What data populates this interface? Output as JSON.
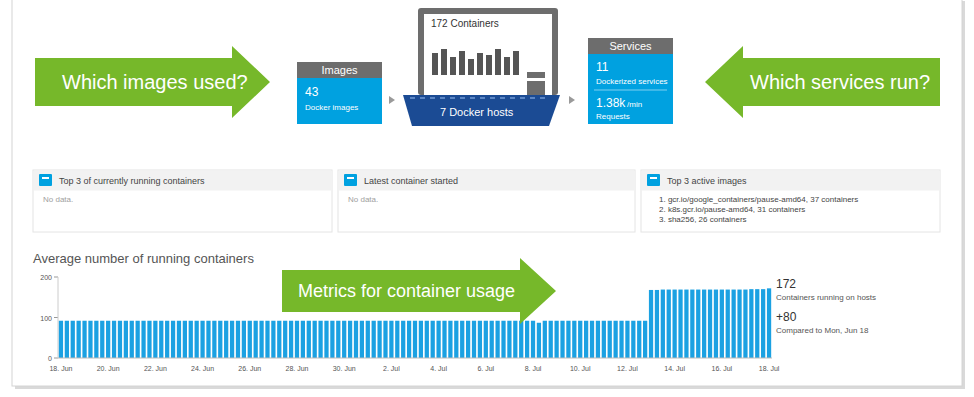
{
  "callouts": [
    "Which images used?",
    "Which services run?",
    "Metrics for container usage"
  ],
  "overview": {
    "images": {
      "title": "Images",
      "count": "43",
      "label": "Docker images"
    },
    "hosts": {
      "containers": "172 Containers",
      "hosts": "7 Docker hosts"
    },
    "services": {
      "title": "Services",
      "count": "11",
      "label": "Dockerized services",
      "requests": "1.38k",
      "unit": "/min",
      "requests_label": "Requests"
    }
  },
  "panels": [
    {
      "title": "Top 3 of currently running containers",
      "body": [
        "No data."
      ]
    },
    {
      "title": "Latest container started",
      "body": [
        "No data."
      ]
    },
    {
      "title": "Top 3 active images",
      "body": [
        "1. gcr.io/google_containers/pause-amd64, 37 containers",
        "2. k8s.gcr.io/pause-amd64, 31 containers",
        "3. sha256, 26 containers"
      ]
    }
  ],
  "chart_data": {
    "type": "bar",
    "title": "Average number of running containers",
    "categories": [
      "18. Jun",
      null,
      null,
      null,
      null,
      null,
      null,
      null,
      "20. Jun",
      null,
      null,
      null,
      null,
      null,
      null,
      null,
      "22. Jun",
      null,
      null,
      null,
      null,
      null,
      null,
      null,
      "24. Jun",
      null,
      null,
      null,
      null,
      null,
      null,
      null,
      "26. Jun",
      null,
      null,
      null,
      null,
      null,
      null,
      null,
      "28. Jun",
      null,
      null,
      null,
      null,
      null,
      null,
      null,
      "30. Jun",
      null,
      null,
      null,
      null,
      null,
      null,
      null,
      "2. Jul",
      null,
      null,
      null,
      null,
      null,
      null,
      null,
      "4. Jul",
      null,
      null,
      null,
      null,
      null,
      null,
      null,
      "6. Jul",
      null,
      null,
      null,
      null,
      null,
      null,
      null,
      "8. Jul",
      null,
      null,
      null,
      null,
      null,
      null,
      null,
      "10. Jul",
      null,
      null,
      null,
      null,
      null,
      null,
      null,
      "12. Jul",
      null,
      null,
      null,
      null,
      null,
      null,
      null,
      "14. Jul",
      null,
      null,
      null,
      null,
      null,
      null,
      null,
      "16. Jul",
      null,
      null,
      null,
      null,
      null,
      null,
      null,
      "18. Jul"
    ],
    "values": [
      92,
      92,
      92,
      92,
      92,
      92,
      92,
      92,
      92,
      92,
      92,
      92,
      92,
      92,
      92,
      92,
      92,
      92,
      92,
      92,
      92,
      92,
      92,
      92,
      92,
      92,
      92,
      92,
      92,
      92,
      92,
      92,
      92,
      92,
      92,
      92,
      92,
      92,
      92,
      92,
      92,
      92,
      92,
      92,
      92,
      92,
      92,
      92,
      92,
      92,
      92,
      92,
      92,
      92,
      92,
      92,
      92,
      92,
      92,
      92,
      92,
      92,
      92,
      92,
      92,
      92,
      92,
      92,
      92,
      92,
      92,
      92,
      92,
      92,
      92,
      92,
      92,
      92,
      92,
      92,
      92,
      87,
      92,
      92,
      92,
      92,
      92,
      92,
      92,
      92,
      92,
      92,
      92,
      92,
      92,
      92,
      92,
      92,
      92,
      92,
      168,
      168,
      169,
      169,
      169,
      169,
      169,
      169,
      169,
      169,
      169,
      169,
      169,
      169,
      169,
      169,
      169,
      170,
      170,
      170,
      172
    ],
    "color": "#1ba1e2",
    "ylim": [
      0,
      200
    ],
    "yticks": [
      0,
      100,
      200
    ],
    "grid": false
  },
  "summary": {
    "value": "172",
    "label": "Containers running on hosts",
    "change": "+80",
    "change_label": "Compared to Mon, Jun 18"
  }
}
